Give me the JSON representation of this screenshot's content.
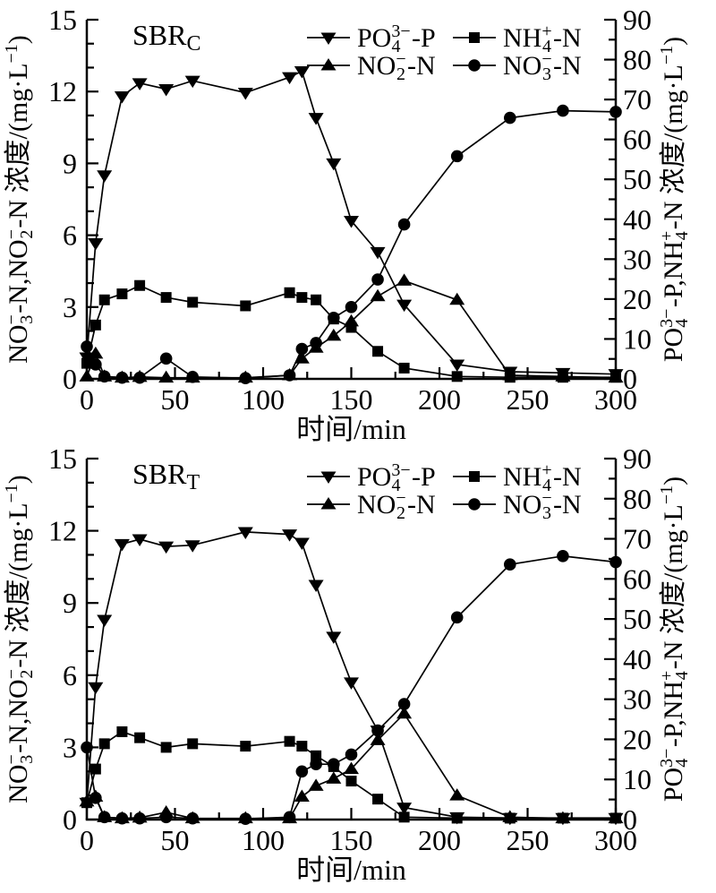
{
  "figure": {
    "background": "#ffffff",
    "ink_color": "#000000",
    "x_axis_title": "时间/min",
    "left_axis_title_tokens": [
      {
        "n": "NO"
      },
      {
        "ss": [
          "3",
          "−"
        ]
      },
      {
        "n": "-N,NO"
      },
      {
        "ss": [
          "2",
          "−"
        ]
      },
      {
        "n": "-N 浓度/(mg·L"
      },
      {
        "sup": "−1"
      },
      {
        "n": ")"
      }
    ],
    "right_axis_title_tokens": [
      {
        "n": "PO"
      },
      {
        "ss": [
          "4",
          "3−"
        ]
      },
      {
        "n": "-P,NH"
      },
      {
        "ss": [
          "4",
          "+"
        ]
      },
      {
        "n": "-N 浓度/(mg·L"
      },
      {
        "sup": "−1"
      },
      {
        "n": ")"
      }
    ]
  },
  "legend": [
    {
      "id": "po4-p",
      "marker": "triangle-down",
      "glyph": "triangle-down-icon",
      "tokens": [
        {
          "n": "PO"
        },
        {
          "ss": [
            "4",
            "3−"
          ]
        },
        {
          "n": "-P"
        }
      ]
    },
    {
      "id": "nh4-n",
      "marker": "square",
      "glyph": "square-icon",
      "tokens": [
        {
          "n": "NH"
        },
        {
          "ss": [
            "4",
            "+"
          ]
        },
        {
          "n": "-N"
        }
      ]
    },
    {
      "id": "no2-n",
      "marker": "triangle-up",
      "glyph": "triangle-up-icon",
      "tokens": [
        {
          "n": "NO"
        },
        {
          "ss": [
            "2",
            "−"
          ]
        },
        {
          "n": "-N"
        }
      ]
    },
    {
      "id": "no3-n",
      "marker": "circle",
      "glyph": "circle-icon",
      "tokens": [
        {
          "n": "NO"
        },
        {
          "ss": [
            "3",
            "−"
          ]
        },
        {
          "n": "-N"
        }
      ]
    }
  ],
  "chart_data": [
    {
      "type": "line",
      "panel_label": {
        "text": "SBR",
        "sub": "C"
      },
      "xlabel": "时间/min",
      "xlim": [
        0,
        300
      ],
      "x_ticks": [
        0,
        50,
        100,
        150,
        200,
        250,
        300
      ],
      "x_minor_step": 25,
      "left_ylim": [
        0,
        15
      ],
      "left_ticks": [
        0,
        3,
        6,
        9,
        12,
        15
      ],
      "left_minor_step": 1,
      "right_ylim": [
        0,
        90
      ],
      "right_ticks": [
        0,
        10,
        20,
        30,
        40,
        50,
        60,
        70,
        80,
        90
      ],
      "right_minor_step": 5,
      "x": [
        0,
        5,
        10,
        20,
        30,
        45,
        60,
        90,
        115,
        122,
        130,
        140,
        150,
        165,
        180,
        210,
        240,
        270,
        300
      ],
      "series": [
        {
          "id": "po4-p",
          "name": "PO4(3-)-P",
          "axis": "right",
          "marker": "triangle-down",
          "values": [
            5.4,
            34,
            51,
            70.8,
            74.1,
            72.6,
            74.7,
            71.7,
            75.6,
            77.1,
            65.4,
            54,
            39.6,
            31.8,
            18.6,
            3.6,
            1.8,
            1.5,
            1.2
          ]
        },
        {
          "id": "nh4-n",
          "name": "NH4(+)-N",
          "axis": "right",
          "marker": "square",
          "values": [
            3.9,
            13.5,
            19.8,
            21.3,
            23.4,
            20.4,
            19.2,
            18.3,
            21.6,
            20.4,
            19.8,
            15,
            12.9,
            6.9,
            2.7,
            0.6,
            0.4,
            0.4,
            0.4
          ]
        },
        {
          "id": "no2-n",
          "name": "NO2(-)-N",
          "axis": "left",
          "marker": "triangle-up",
          "values": [
            0.1,
            1.05,
            0.1,
            0.05,
            0.08,
            0.05,
            0.05,
            0.05,
            0.15,
            0.85,
            1.3,
            1.8,
            2.4,
            3.45,
            4.1,
            3.3,
            0.15,
            0.1,
            0.05
          ]
        },
        {
          "id": "no3-n",
          "name": "NO3(-)-N",
          "axis": "left",
          "marker": "circle",
          "values": [
            1.35,
            0.6,
            0.1,
            0.05,
            0.05,
            0.85,
            0.08,
            0.03,
            0.15,
            1.25,
            1.5,
            2.55,
            3.0,
            4.15,
            6.45,
            9.3,
            10.9,
            11.2,
            11.15
          ]
        }
      ]
    },
    {
      "type": "line",
      "panel_label": {
        "text": "SBR",
        "sub": "T"
      },
      "xlabel": "时间/min",
      "xlim": [
        0,
        300
      ],
      "x_ticks": [
        0,
        50,
        100,
        150,
        200,
        250,
        300
      ],
      "x_minor_step": 25,
      "left_ylim": [
        0,
        15
      ],
      "left_ticks": [
        0,
        3,
        6,
        9,
        12,
        15
      ],
      "left_minor_step": 1,
      "right_ylim": [
        0,
        90
      ],
      "right_ticks": [
        0,
        10,
        20,
        30,
        40,
        50,
        60,
        70,
        80,
        90
      ],
      "right_minor_step": 5,
      "x": [
        0,
        5,
        10,
        20,
        30,
        45,
        60,
        90,
        115,
        122,
        130,
        140,
        150,
        165,
        180,
        210,
        240,
        270,
        300
      ],
      "series": [
        {
          "id": "po4-p",
          "name": "PO4(3-)-P",
          "axis": "right",
          "marker": "triangle-down",
          "values": [
            4.2,
            33,
            49.8,
            68.7,
            69.9,
            68.1,
            68.4,
            71.7,
            71.1,
            69,
            58.5,
            45.6,
            34.2,
            22.2,
            3,
            0.6,
            0.4,
            0.4,
            0.4
          ]
        },
        {
          "id": "nh4-n",
          "name": "NH4(+)-N",
          "axis": "right",
          "marker": "square",
          "values": [
            4.2,
            12.6,
            18.9,
            21.9,
            20.4,
            18,
            18.9,
            18.3,
            19.5,
            18.3,
            15.9,
            13.2,
            9.6,
            5.1,
            0.6,
            0.35,
            0.35,
            0.35,
            0.35
          ]
        },
        {
          "id": "no2-n",
          "name": "NO2(-)-N",
          "axis": "left",
          "marker": "triangle-up",
          "values": [
            0.75,
            0.95,
            0.1,
            0.05,
            0.08,
            0.3,
            0.05,
            0.05,
            0.05,
            0.95,
            1.4,
            1.7,
            2.1,
            3.3,
            4.4,
            1.0,
            0.1,
            0.05,
            0.05
          ]
        },
        {
          "id": "no3-n",
          "name": "NO3(-)-N",
          "axis": "left",
          "marker": "circle",
          "values": [
            3.0,
            0.9,
            0.1,
            0.05,
            0.05,
            0.1,
            0.05,
            0.03,
            0.1,
            2.0,
            2.3,
            2.3,
            2.7,
            3.7,
            4.8,
            8.4,
            10.6,
            10.95,
            10.7
          ]
        }
      ]
    }
  ]
}
